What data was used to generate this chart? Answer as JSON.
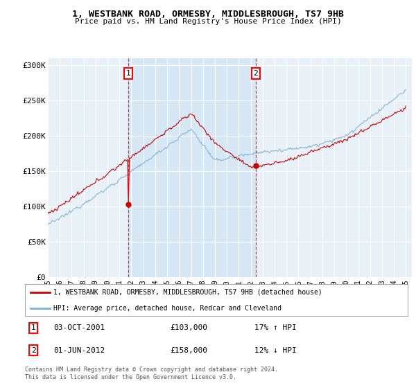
{
  "title1": "1, WESTBANK ROAD, ORMESBY, MIDDLESBROUGH, TS7 9HB",
  "title2": "Price paid vs. HM Land Registry's House Price Index (HPI)",
  "ylim": [
    0,
    310000
  ],
  "yticks": [
    0,
    50000,
    100000,
    150000,
    200000,
    250000,
    300000
  ],
  "ytick_labels": [
    "£0",
    "£50K",
    "£100K",
    "£150K",
    "£200K",
    "£250K",
    "£300K"
  ],
  "property_color": "#cc0000",
  "hpi_color": "#7bafd4",
  "shade_color": "#d6e8f5",
  "background_color": "#e8f0f8",
  "grid_color": "#ffffff",
  "legend_label1": "1, WESTBANK ROAD, ORMESBY, MIDDLESBROUGH, TS7 9HB (detached house)",
  "legend_label2": "HPI: Average price, detached house, Redcar and Cleveland",
  "info1_label": "1",
  "info1_date": "03-OCT-2001",
  "info1_price": "£103,000",
  "info1_hpi": "17% ↑ HPI",
  "info2_label": "2",
  "info2_date": "01-JUN-2012",
  "info2_price": "£158,000",
  "info2_hpi": "12% ↓ HPI",
  "footer": "Contains HM Land Registry data © Crown copyright and database right 2024.\nThis data is licensed under the Open Government Licence v3.0.",
  "marker1_price": 103000,
  "marker2_price": 158000
}
